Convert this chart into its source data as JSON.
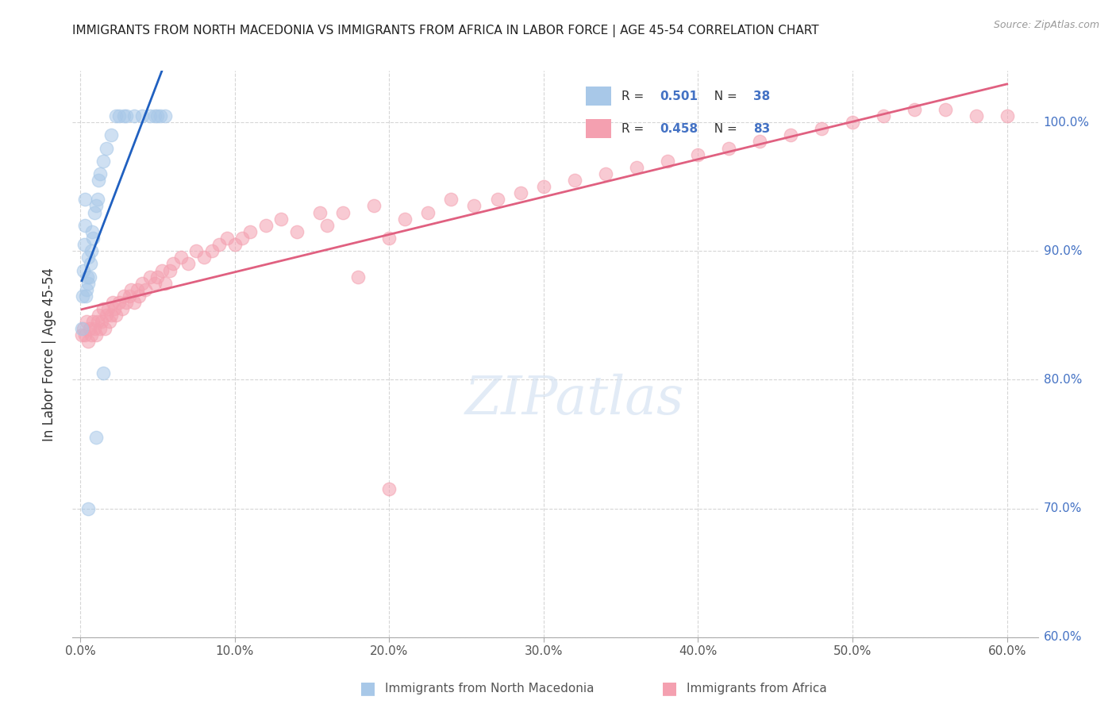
{
  "title": "IMMIGRANTS FROM NORTH MACEDONIA VS IMMIGRANTS FROM AFRICA IN LABOR FORCE | AGE 45-54 CORRELATION CHART",
  "source": "Source: ZipAtlas.com",
  "ylabel": "In Labor Force | Age 45-54",
  "blue_color": "#a8c8e8",
  "pink_color": "#f4a0b0",
  "blue_line_color": "#2060c0",
  "pink_line_color": "#e06080",
  "blue_r": "0.501",
  "blue_n": "38",
  "pink_r": "0.458",
  "pink_n": "83",
  "xlim": [
    -0.5,
    62
  ],
  "ylim": [
    60,
    104
  ],
  "x_ticks": [
    0,
    10,
    20,
    30,
    40,
    50,
    60
  ],
  "y_ticks": [
    60,
    70,
    80,
    90,
    100
  ],
  "macedonia_x": [
    0.1,
    0.15,
    0.2,
    0.25,
    0.3,
    0.3,
    0.35,
    0.4,
    0.45,
    0.5,
    0.5,
    0.6,
    0.65,
    0.7,
    0.75,
    0.8,
    0.9,
    1.0,
    1.1,
    1.2,
    1.3,
    1.5,
    1.7,
    2.0,
    2.3,
    2.5,
    2.8,
    3.0,
    3.5,
    4.0,
    4.5,
    4.8,
    5.0,
    5.2,
    5.5,
    0.5,
    1.0,
    1.5
  ],
  "macedonia_y": [
    84.0,
    86.5,
    88.5,
    90.5,
    92.0,
    94.0,
    86.5,
    87.0,
    88.0,
    87.5,
    89.5,
    88.0,
    89.0,
    90.0,
    91.5,
    91.0,
    93.0,
    93.5,
    94.0,
    95.5,
    96.0,
    97.0,
    98.0,
    99.0,
    100.5,
    100.5,
    100.5,
    100.5,
    100.5,
    100.5,
    100.5,
    100.5,
    100.5,
    100.5,
    100.5,
    70.0,
    75.5,
    80.5
  ],
  "africa_x": [
    0.1,
    0.2,
    0.3,
    0.4,
    0.5,
    0.6,
    0.7,
    0.8,
    0.9,
    1.0,
    1.1,
    1.2,
    1.3,
    1.4,
    1.5,
    1.6,
    1.7,
    1.8,
    1.9,
    2.0,
    2.1,
    2.2,
    2.3,
    2.5,
    2.7,
    2.8,
    3.0,
    3.2,
    3.3,
    3.5,
    3.7,
    3.8,
    4.0,
    4.2,
    4.5,
    4.8,
    5.0,
    5.3,
    5.5,
    5.8,
    6.0,
    6.5,
    7.0,
    7.5,
    8.0,
    8.5,
    9.0,
    9.5,
    10.0,
    10.5,
    11.0,
    12.0,
    13.0,
    14.0,
    15.5,
    16.0,
    17.0,
    18.0,
    19.0,
    20.0,
    21.0,
    22.5,
    24.0,
    25.5,
    27.0,
    28.5,
    30.0,
    32.0,
    34.0,
    36.0,
    38.0,
    40.0,
    42.0,
    44.0,
    46.0,
    48.0,
    50.0,
    52.0,
    54.0,
    56.0,
    58.0,
    60.0,
    20.0
  ],
  "africa_y": [
    83.5,
    84.0,
    83.5,
    84.5,
    83.0,
    84.0,
    83.5,
    84.5,
    84.0,
    83.5,
    84.5,
    85.0,
    84.0,
    84.5,
    85.5,
    84.0,
    85.0,
    85.5,
    84.5,
    85.0,
    86.0,
    85.5,
    85.0,
    86.0,
    85.5,
    86.5,
    86.0,
    86.5,
    87.0,
    86.0,
    87.0,
    86.5,
    87.5,
    87.0,
    88.0,
    87.5,
    88.0,
    88.5,
    87.5,
    88.5,
    89.0,
    89.5,
    89.0,
    90.0,
    89.5,
    90.0,
    90.5,
    91.0,
    90.5,
    91.0,
    91.5,
    92.0,
    92.5,
    91.5,
    93.0,
    92.0,
    93.0,
    88.0,
    93.5,
    91.0,
    92.5,
    93.0,
    94.0,
    93.5,
    94.0,
    94.5,
    95.0,
    95.5,
    96.0,
    96.5,
    97.0,
    97.5,
    98.0,
    98.5,
    99.0,
    99.5,
    100.0,
    100.5,
    101.0,
    101.0,
    100.5,
    100.5,
    71.5
  ],
  "watermark_text": "ZIPatlas",
  "legend_label_blue": "R = 0.501   N = 38",
  "legend_label_pink": "R = 0.458   N = 83"
}
